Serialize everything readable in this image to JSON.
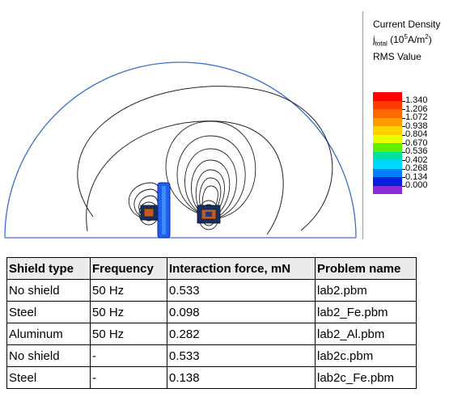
{
  "legend": {
    "title_line1": "Current Density",
    "title_symbol": "j",
    "title_subscript": "total",
    "title_unit_prefix": "(10",
    "title_unit_exp": "5",
    "title_unit_mid": "A/m",
    "title_unit_exp2": "2",
    "title_unit_suffix": ")",
    "title_line3": "RMS Value",
    "labels": [
      "1.340",
      "1.206",
      "1.072",
      "0.938",
      "0.804",
      "0.670",
      "0.536",
      "0.402",
      "0.268",
      "0.134",
      "0.000"
    ],
    "colors": [
      "#ff0000",
      "#ff3a00",
      "#ff6a00",
      "#ff9a00",
      "#ffd000",
      "#e8ff00",
      "#5ef000",
      "#00e0a0",
      "#00d8ff",
      "#0080ff",
      "#0020e0",
      "#8c2ad8"
    ]
  },
  "table": {
    "headers": [
      "Shield type",
      "Frequency",
      "Interaction force, mN",
      "Problem name"
    ],
    "rows": [
      [
        "No shield",
        "50 Hz",
        "0.533",
        "lab2.pbm"
      ],
      [
        "Steel",
        "50 Hz",
        "0.098",
        "lab2_Fe.pbm"
      ],
      [
        "Aluminum",
        "50 Hz",
        "0.282",
        "lab2_Al.pbm"
      ],
      [
        "No shield",
        "-",
        "0.533",
        "lab2c.pbm"
      ],
      [
        "Steel",
        "-",
        "0.138",
        "lab2c_Fe.pbm"
      ]
    ]
  }
}
